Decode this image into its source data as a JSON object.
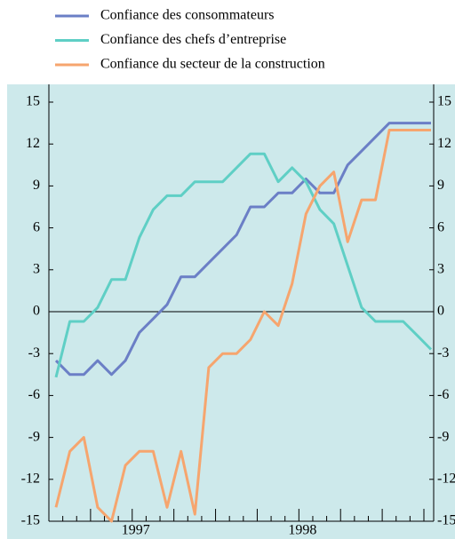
{
  "chart_data": {
    "type": "line",
    "categories": [
      null,
      null,
      null,
      null,
      null,
      null,
      "1997",
      null,
      null,
      null,
      null,
      null,
      null,
      null,
      null,
      null,
      null,
      null,
      "1998",
      null,
      null,
      null,
      null,
      null,
      null,
      null,
      null,
      null
    ],
    "series": [
      {
        "name": "Confiance des consommateurs",
        "color": "#6b7fc6",
        "values": [
          -3.5,
          -4.5,
          -4.5,
          -3.5,
          -4.5,
          -3.5,
          -1.5,
          -0.5,
          0.5,
          2.5,
          2.5,
          3.5,
          4.5,
          5.5,
          7.5,
          7.5,
          8.5,
          8.5,
          9.5,
          8.5,
          8.5,
          10.5,
          11.5,
          12.5,
          13.5,
          13.5,
          13.5,
          13.5
        ]
      },
      {
        "name": "Confiance des chefs d’entreprise",
        "color": "#5fcfc5",
        "values": [
          -4.7,
          -0.7,
          -0.7,
          0.3,
          2.3,
          2.3,
          5.3,
          7.3,
          8.3,
          8.3,
          9.3,
          9.3,
          9.3,
          10.3,
          11.3,
          11.3,
          9.3,
          10.3,
          9.3,
          7.3,
          6.3,
          3.3,
          0.3,
          -0.7,
          -0.7,
          -0.7,
          -1.7,
          -2.7
        ]
      },
      {
        "name": "Confiance du secteur de la construction",
        "color": "#f6a56e",
        "values": [
          -14,
          -10,
          -9,
          -14,
          -15,
          -11,
          -10,
          -10,
          -14,
          -10,
          -14.5,
          -4,
          -3,
          -3,
          -2,
          0,
          -1,
          2,
          7,
          9,
          10,
          5,
          8,
          8,
          13,
          13,
          13,
          13
        ]
      }
    ],
    "ylim": [
      -15,
      15
    ],
    "yticks": [
      -15,
      -12,
      -9,
      -6,
      -3,
      0,
      3,
      6,
      9,
      12,
      15
    ],
    "y2lim": [
      -15,
      15
    ],
    "y2ticks": [
      -15,
      -12,
      -9,
      -6,
      -3,
      0,
      3,
      6,
      9,
      12,
      15
    ]
  }
}
